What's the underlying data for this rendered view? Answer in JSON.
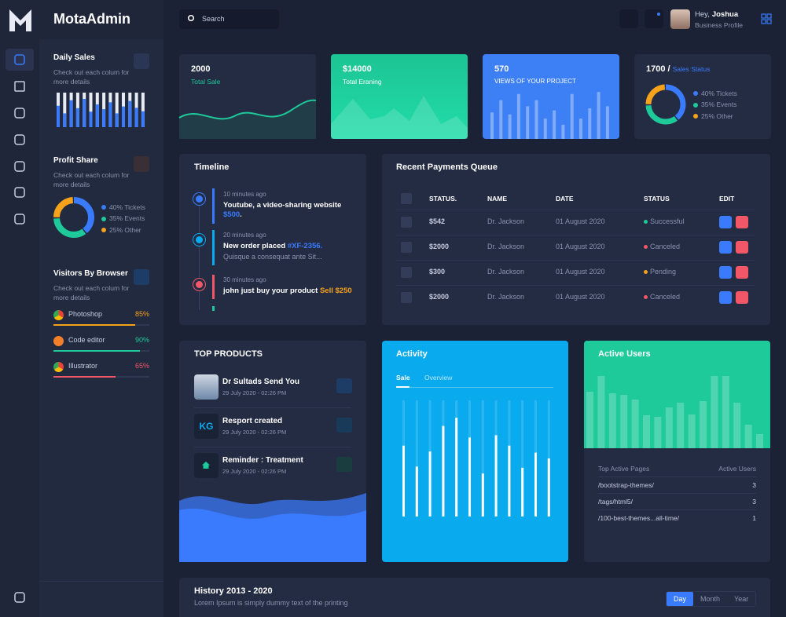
{
  "brand": "MotaAdmin",
  "search": "Search",
  "user": {
    "greeting": "Hey,",
    "name": "Joshua",
    "role": "Business Profile"
  },
  "sidebar": {
    "daily_sales": {
      "title": "Daily Sales",
      "text": "Check out each colum for more details",
      "values": [
        62,
        40,
        78,
        55,
        82,
        45,
        66,
        52,
        72,
        40,
        60,
        76,
        56,
        46
      ]
    },
    "profit_share": {
      "title": "Profit Share",
      "text": "Check out each colum for more details",
      "segments": [
        {
          "label": "40% Tickets",
          "value": 40,
          "color": "#3a7bfd"
        },
        {
          "label": "35% Events",
          "value": 35,
          "color": "#1ec99a"
        },
        {
          "label": "25% Other",
          "value": 25,
          "color": "#f7a21b"
        }
      ]
    },
    "browsers": {
      "title": "Visitors By Browser",
      "text": "Check out each colum for more details",
      "items": [
        {
          "name": "Photoshop",
          "value": 85,
          "label": "85%",
          "color": "#f7a21b"
        },
        {
          "name": "Code editor",
          "value": 90,
          "label": "90%",
          "color": "#1ec99a"
        },
        {
          "name": "Illustrator",
          "value": 65,
          "label": "65%",
          "color": "#f25767"
        }
      ]
    }
  },
  "stats": [
    {
      "value": "2000",
      "label": "Total Sale"
    },
    {
      "value": "$14000",
      "label": "Total Eraning"
    },
    {
      "value": "570",
      "label": "VIEWS OF YOUR PROJECT",
      "bars": [
        26,
        38,
        24,
        44,
        32,
        38,
        20,
        28,
        14,
        44,
        20,
        30,
        46,
        32
      ]
    },
    {
      "value": "1700 /",
      "label": "Sales Status",
      "segments": [
        {
          "label": "40% Tickets",
          "value": 40,
          "color": "#3a7bfd"
        },
        {
          "label": "35% Events",
          "value": 35,
          "color": "#1ec99a"
        },
        {
          "label": "25% Other",
          "value": 25,
          "color": "#f7a21b"
        }
      ]
    }
  ],
  "timeline": {
    "title": "Timeline",
    "items": [
      {
        "time": "10 minutes ago",
        "text": "Youtube, a video-sharing website",
        "highlight": "$500",
        "end": ".",
        "color": "#3a7bfd"
      },
      {
        "time": "20 minutes ago",
        "text": "New order placed",
        "highlight": "#XF-2356.",
        "sub": "Quisque a consequat ante Sit...",
        "color": "#0aaaee"
      },
      {
        "time": "30 minutes ago",
        "text": "john just buy your product",
        "highlight": "Sell $250",
        "color": "#f25767"
      }
    ]
  },
  "payments": {
    "title": "Recent Payments Queue",
    "columns": [
      "STATUS.",
      "NAME",
      "DATE",
      "STATUS",
      "EDIT"
    ],
    "rows": [
      [
        "$542",
        "Dr. Jackson",
        "01 August 2020",
        "Successful"
      ],
      [
        "$2000",
        "Dr. Jackson",
        "01 August 2020",
        "Canceled"
      ],
      [
        "$300",
        "Dr. Jackson",
        "01 August 2020",
        "Pending"
      ],
      [
        "$2000",
        "Dr. Jackson",
        "01 August 2020",
        "Canceled"
      ]
    ],
    "status_colors": [
      "#1ec99a",
      "#f25767",
      "#f7a21b",
      "#f25767"
    ]
  },
  "products": {
    "title": "TOP PRODUCTS",
    "items": [
      {
        "title": "Dr Sultads Send You",
        "date": "29 July 2020 - 02:26 PM"
      },
      {
        "avatar": "KG",
        "title": "Resport created",
        "date": "29 July 2020 - 02:26 PM"
      },
      {
        "title": "Reminder : Treatment",
        "date": "29 July 2020 - 02:26 PM"
      }
    ]
  },
  "activity": {
    "title": "Activity",
    "tabs": [
      "Sale",
      "Overview"
    ],
    "values": [
      61,
      43,
      56,
      78,
      85,
      68,
      37,
      70,
      61,
      42,
      55,
      50
    ]
  },
  "active_users": {
    "title": "Active Users",
    "values": [
      72,
      92,
      70,
      68,
      62,
      42,
      40,
      52,
      58,
      43,
      60,
      92,
      92,
      58,
      30,
      18
    ],
    "columns": [
      "Top Active Pages",
      "Active Users"
    ],
    "rows": [
      [
        "/bootstrap-themes/",
        3
      ],
      [
        "/tags/html5/",
        3
      ],
      [
        "/100-best-themes...all-time/",
        1
      ]
    ]
  },
  "history": {
    "title": "History 2013 - 2020",
    "subtitle": "Lorem Ipsum is simply dummy text of the printing",
    "buttons": [
      "Day",
      "Month",
      "Year"
    ]
  }
}
